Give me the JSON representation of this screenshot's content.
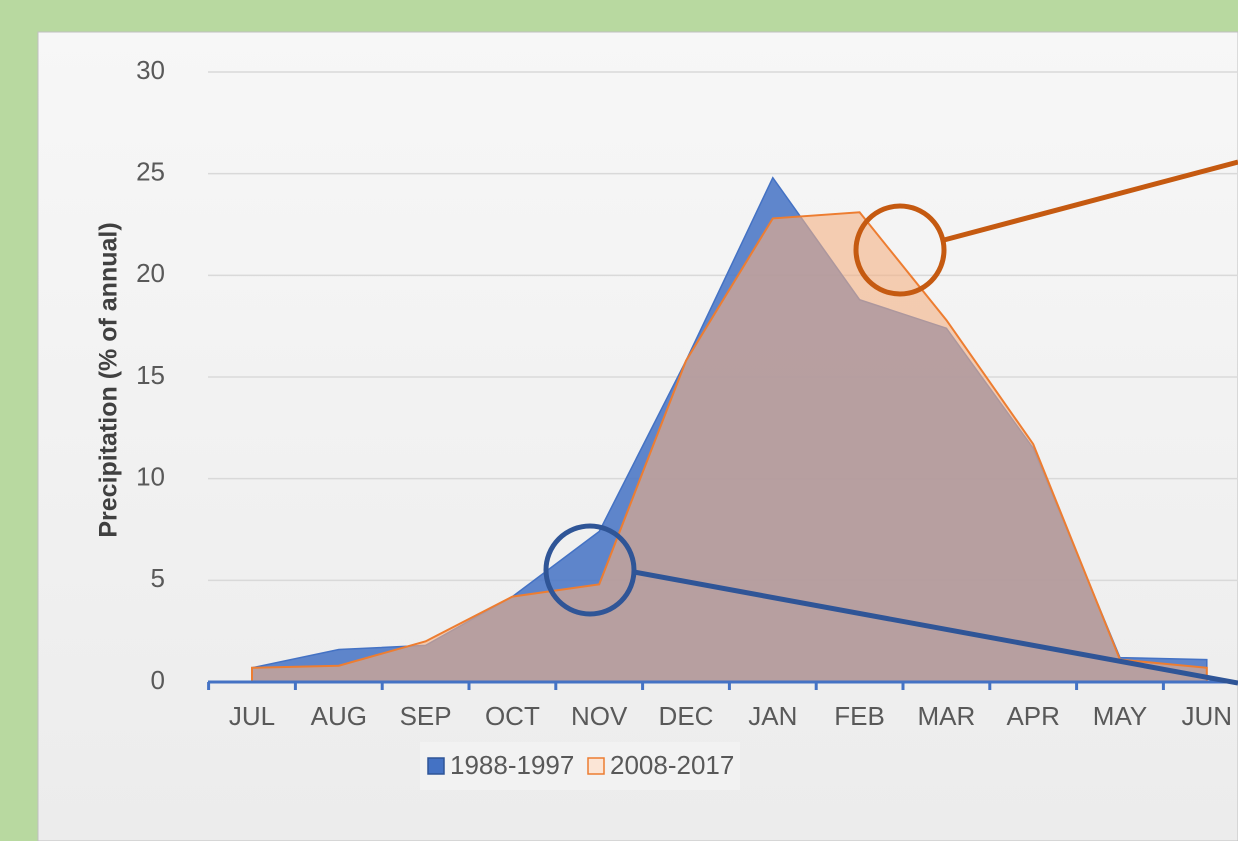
{
  "chart_data": {
    "type": "area",
    "y_label": "Precipitation (% of annual)",
    "categories": [
      "JUL",
      "AUG",
      "SEP",
      "OCT",
      "NOV",
      "DEC",
      "JAN",
      "FEB",
      "MAR",
      "APR",
      "MAY",
      "JUN"
    ],
    "series": [
      {
        "name": "1988-1997",
        "color": "#4472c4",
        "values": [
          0.7,
          1.6,
          1.8,
          4.2,
          7.4,
          15.8,
          24.8,
          18.8,
          17.4,
          11.5,
          1.2,
          1.1
        ]
      },
      {
        "name": "2008-2017",
        "color": "#ed7d31",
        "values": [
          0.7,
          0.8,
          2.0,
          4.2,
          4.8,
          15.8,
          22.8,
          23.1,
          17.8,
          11.7,
          1.1,
          0.7
        ]
      }
    ],
    "ylim": [
      0,
      30
    ],
    "yticks": [
      0,
      5,
      10,
      15,
      20,
      25,
      30
    ],
    "grid": true,
    "legend": "bottom"
  }
}
